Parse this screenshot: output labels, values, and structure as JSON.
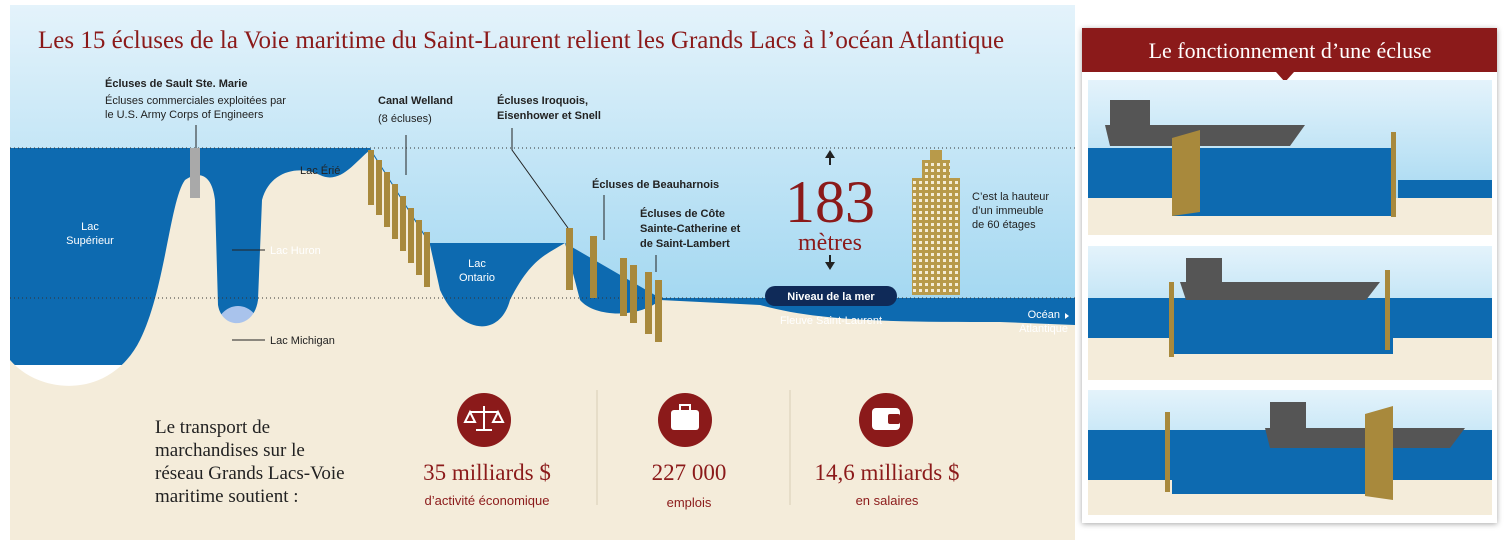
{
  "title": "Les 15 écluses de la Voie maritime du Saint-Laurent relient les Grands Lacs à l’océan Atlantique",
  "map": {
    "sault": {
      "name": "Écluses de Sault Ste. Marie",
      "note": [
        "Écluses commerciales exploitées par",
        "le U.S. Army Corps of Engineers"
      ]
    },
    "lakes": {
      "superieur": [
        "Lac",
        "Supérieur"
      ],
      "huron": "Lac Huron",
      "michigan": "Lac Michigan",
      "erie": "Lac Érié",
      "ontario": [
        "Lac",
        "Ontario"
      ]
    },
    "welland": {
      "name": "Canal Welland",
      "note": "(8 écluses)"
    },
    "iroquois": [
      "Écluses Iroquois,",
      "Eisenhower et Snell"
    ],
    "beauharnois": "Écluses de Beauharnois",
    "cote": [
      "Écluses de Côte",
      "Sainte-Catherine et",
      "de Saint-Lambert"
    ],
    "height": {
      "value": "183",
      "unit": "mètres",
      "note": [
        "C’est la hauteur",
        "d’un immeuble",
        "de 60 étages"
      ]
    },
    "sea_level": "Niveau de la mer",
    "river": "Fleuve Saint-Laurent",
    "ocean": [
      "Océan",
      "Atlantique"
    ]
  },
  "stats": {
    "intro": [
      "Le transport de",
      "marchandises sur le",
      "réseau Grands Lacs-Voie",
      "maritime soutient :"
    ],
    "items": [
      {
        "value": "35 milliards $",
        "label": "d’activité économique"
      },
      {
        "value": "227 000",
        "label": "emplois"
      },
      {
        "value": "14,6 milliards $",
        "label": "en salaires"
      }
    ]
  },
  "panel": {
    "title": "Le fonctionnement d’une écluse"
  }
}
